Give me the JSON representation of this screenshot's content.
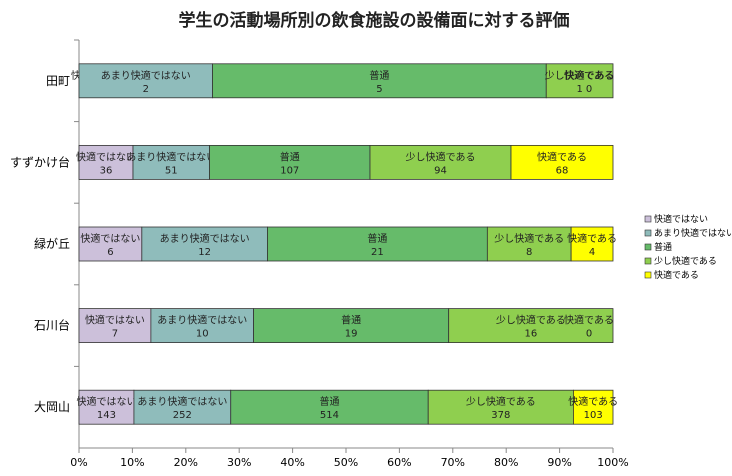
{
  "chart_data": {
    "type": "bar",
    "orientation": "horizontal",
    "stacked": "percent",
    "title": "学生の活動場所別の飲食施設の設備面に対する評価",
    "categories": [
      "田町",
      "すずかけ台",
      "緑が丘",
      "石川台",
      "大岡山"
    ],
    "series": [
      {
        "name": "快適ではない",
        "color": "#ccc0da",
        "values": [
          0,
          36,
          6,
          7,
          143
        ]
      },
      {
        "name": "あまり快適ではない",
        "color": "#8fbcbb",
        "values": [
          2,
          51,
          12,
          10,
          252
        ]
      },
      {
        "name": "普通",
        "color": "#66bb6a",
        "values": [
          5,
          107,
          21,
          19,
          514
        ]
      },
      {
        "name": "少し快適である",
        "color": "#8fcf4f",
        "values": [
          1,
          94,
          8,
          16,
          378
        ]
      },
      {
        "name": "快適である",
        "color": "#ffff00",
        "values": [
          0,
          68,
          4,
          0,
          103
        ]
      }
    ],
    "xlim": [
      0,
      100
    ],
    "xticks": [
      "0%",
      "10%",
      "20%",
      "30%",
      "40%",
      "50%",
      "60%",
      "70%",
      "80%",
      "90%",
      "100%"
    ],
    "legend_position": "right",
    "grid": false
  }
}
